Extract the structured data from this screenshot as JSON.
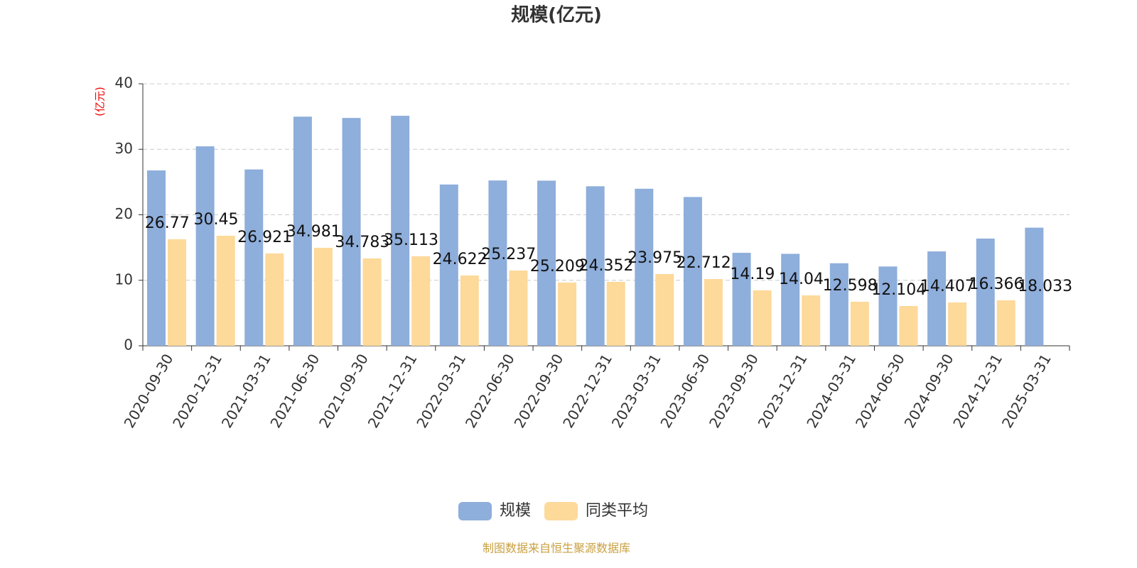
{
  "chart_data": {
    "type": "bar",
    "title": "规模(亿元)",
    "y_label": "(亿元)",
    "source": "制图数据来自恒生聚源数据库",
    "categories": [
      "2020-09-30",
      "2020-12-31",
      "2021-03-31",
      "2021-06-30",
      "2021-09-30",
      "2021-12-31",
      "2022-03-31",
      "2022-06-30",
      "2022-09-30",
      "2022-12-31",
      "2023-03-31",
      "2023-06-30",
      "2023-09-30",
      "2023-12-31",
      "2024-03-31",
      "2024-06-30",
      "2024-09-30",
      "2024-12-31",
      "2025-03-31"
    ],
    "series": [
      {
        "name": "规模",
        "color": "#8eaedb",
        "values": [
          26.77,
          30.45,
          26.921,
          34.981,
          34.783,
          35.113,
          24.622,
          25.237,
          25.209,
          24.352,
          23.975,
          22.712,
          14.19,
          14.04,
          12.598,
          12.104,
          14.407,
          16.366,
          18.033
        ]
      },
      {
        "name": "同类平均",
        "color": "#fdd99a",
        "values": [
          16.26,
          16.8,
          14.1,
          14.96,
          13.33,
          13.66,
          10.73,
          11.49,
          9.65,
          9.76,
          10.95,
          10.19,
          8.46,
          7.7,
          6.72,
          6.07,
          6.61,
          6.94,
          null
        ]
      }
    ],
    "ylim": [
      0,
      40
    ],
    "yticks": [
      0,
      10,
      20,
      30,
      40
    ],
    "grid": true
  }
}
